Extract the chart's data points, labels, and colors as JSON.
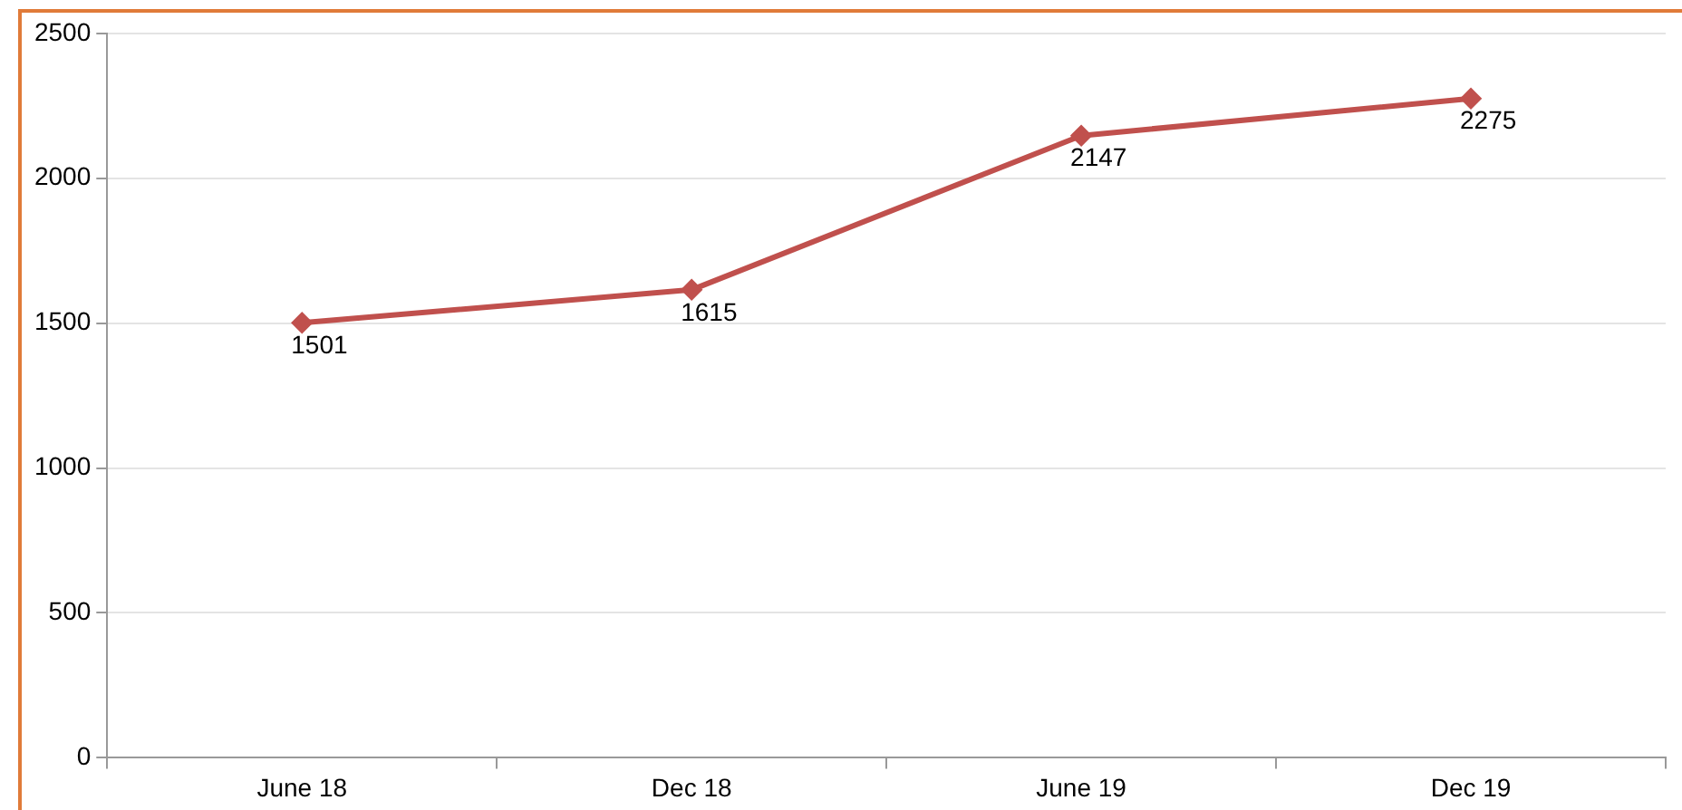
{
  "chart_data": {
    "type": "line",
    "categories": [
      "June 18",
      "Dec 18",
      "June 19",
      "Dec 19"
    ],
    "series": [
      {
        "color": "#c0504d",
        "values": [
          1501,
          1615,
          2147,
          2275
        ]
      }
    ],
    "ylim": [
      0,
      2500
    ],
    "yticks": [
      0,
      500,
      1000,
      1500,
      2000,
      2500
    ],
    "grid": "y",
    "legend": false,
    "marker": "diamond",
    "line_style": "solid",
    "data_labels": true
  }
}
